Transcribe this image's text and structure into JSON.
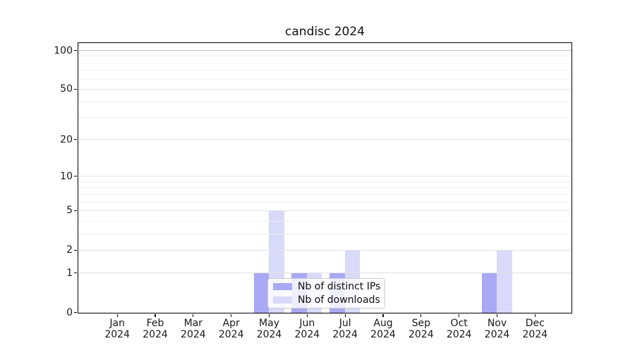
{
  "chart_data": {
    "type": "bar",
    "title": "candisc 2024",
    "categories": [
      "Jan 2024",
      "Feb 2024",
      "Mar 2024",
      "Apr 2024",
      "May 2024",
      "Jun 2024",
      "Jul 2024",
      "Aug 2024",
      "Sep 2024",
      "Oct 2024",
      "Nov 2024",
      "Dec 2024"
    ],
    "series": [
      {
        "name": "Nb of distinct IPs",
        "color": "#a9a9f5",
        "values": [
          0,
          0,
          0,
          0,
          1,
          1,
          1,
          0,
          0,
          0,
          1,
          0
        ]
      },
      {
        "name": "Nb of downloads",
        "color": "#d9d9f9",
        "values": [
          0,
          0,
          0,
          0,
          5,
          1,
          2,
          0,
          0,
          0,
          2,
          0
        ]
      }
    ],
    "xlabel": "",
    "ylabel": "",
    "yscale": "log1p",
    "y_ticks": [
      0,
      1,
      2,
      5,
      10,
      20,
      50,
      100
    ],
    "y_minor_ticks": [
      3,
      4,
      6,
      7,
      8,
      9,
      30,
      40,
      60,
      70,
      80,
      90
    ],
    "emphasized_gridline": 100,
    "ylim": [
      0,
      113.5
    ],
    "grid": true,
    "legend_position": "inside lower-center"
  }
}
